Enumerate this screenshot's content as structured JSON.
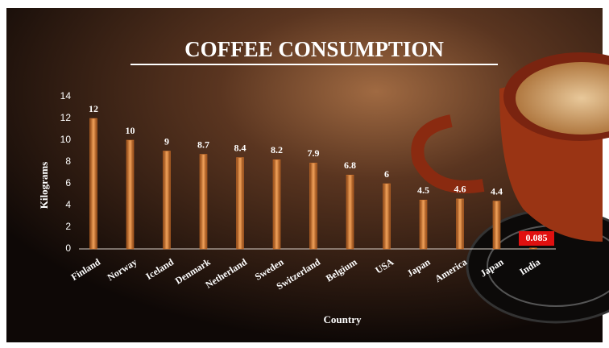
{
  "chart_data": {
    "type": "bar",
    "title": "COFFEE CONSUMPTION",
    "x_label": "Country",
    "y_label": "Kilograms",
    "categories": [
      "Finland",
      "Norway",
      "Iceland",
      "Denmark",
      "Netherland",
      "Sweden",
      "Switzerland",
      "Belgium",
      "USA",
      "Japan",
      "America",
      "Japan",
      "India"
    ],
    "values": [
      12,
      10,
      9,
      8.7,
      8.4,
      8.2,
      7.9,
      6.8,
      6,
      4.5,
      4.6,
      4.4,
      0.085
    ],
    "color": "#d9782e",
    "ylim": [
      0,
      14
    ],
    "yticks": [
      0,
      2,
      4,
      6,
      8,
      10,
      12,
      14
    ],
    "grid": false
  }
}
